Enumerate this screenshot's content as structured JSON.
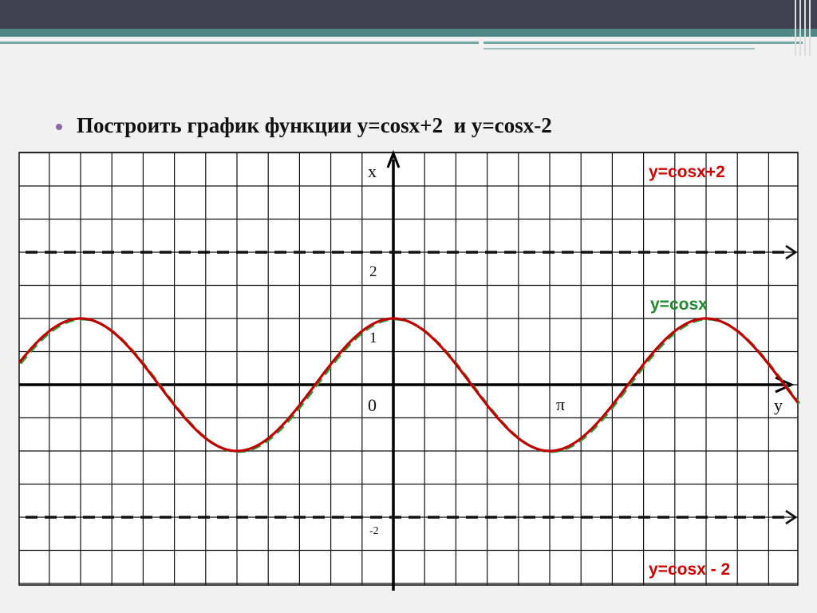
{
  "slide": {
    "title": "Построить график функции y=cosx+2  и y=cosx-2"
  },
  "chart_data": {
    "type": "line",
    "title": "Построить график функции y=cosx+2  и y=cosx-2",
    "axis_labels": {
      "vertical": "x",
      "horizontal": "y"
    },
    "tick_labels": {
      "origin": "0",
      "pi": "π",
      "one": "1",
      "two": "2",
      "minus_two": "-2"
    },
    "xlim": [
      -3.8,
      4.0
    ],
    "ylim": [
      -3.0,
      3.5
    ],
    "grid": true,
    "series": [
      {
        "name": "y=cosx",
        "style": "dashed",
        "color": "#2e9d3e",
        "function": "cos(x)",
        "label_color": "#1f8a2e"
      },
      {
        "name": "",
        "style": "solid",
        "color": "#c00000",
        "function": "cos(x)"
      },
      {
        "name": "y=cosx+2",
        "style": "dashed",
        "color": "#111111",
        "function": "2",
        "label_color": "#d00000"
      },
      {
        "name": "y=cosx - 2",
        "style": "dashed",
        "color": "#111111",
        "function": "-2",
        "label_color": "#d00000"
      }
    ],
    "scale_note": "1 unit = 2 grid cells vertically; π = 5 grid cells horizontally"
  },
  "colors": {
    "grid": "#111111",
    "axis": "#000000",
    "background": "#ffffff"
  }
}
